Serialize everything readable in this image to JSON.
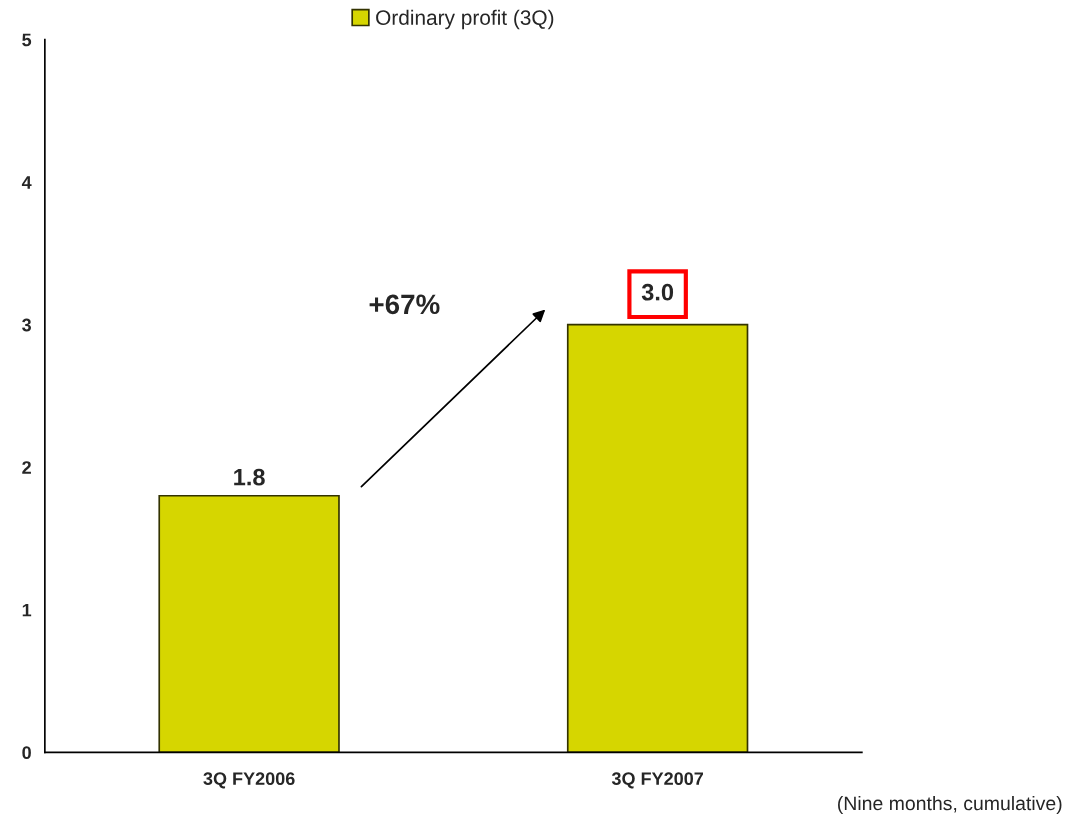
{
  "chart_data": {
    "type": "bar",
    "categories": [
      "3Q FY2006",
      "3Q FY2007"
    ],
    "series": [
      {
        "name": "Ordinary profit (3Q)",
        "color": "#d6d600",
        "values": [
          1.8,
          3.0
        ],
        "value_labels": [
          "1.8",
          "3.0"
        ]
      }
    ],
    "ylim": [
      0,
      5
    ],
    "yticks": [
      0,
      1,
      2,
      3,
      4,
      5
    ],
    "grid": false,
    "legend": "top",
    "annotations": [
      "+67%",
      "(Nine months, cumulative)"
    ]
  }
}
